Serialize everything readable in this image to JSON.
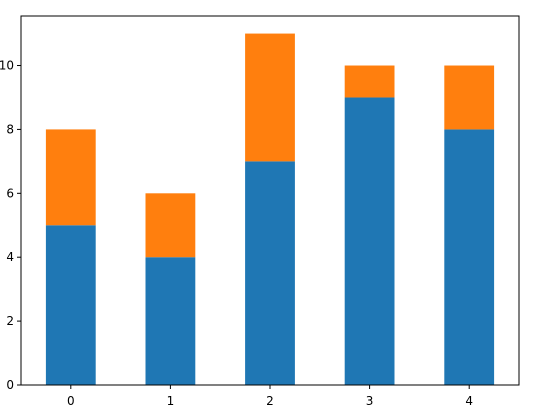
{
  "chart_data": {
    "type": "bar",
    "stacked": true,
    "categories": [
      "0",
      "1",
      "2",
      "3",
      "4"
    ],
    "series": [
      {
        "values": [
          5,
          4,
          7,
          9,
          8
        ],
        "color": "#1f77b4"
      },
      {
        "values": [
          3,
          2,
          4,
          1,
          2
        ],
        "color": "#ff7f0e"
      }
    ],
    "ylim": [
      0,
      11.55
    ],
    "yticks": [
      0,
      2,
      4,
      6,
      8,
      10
    ],
    "title": "",
    "xlabel": "",
    "ylabel": "",
    "grid": false,
    "legend": false
  }
}
